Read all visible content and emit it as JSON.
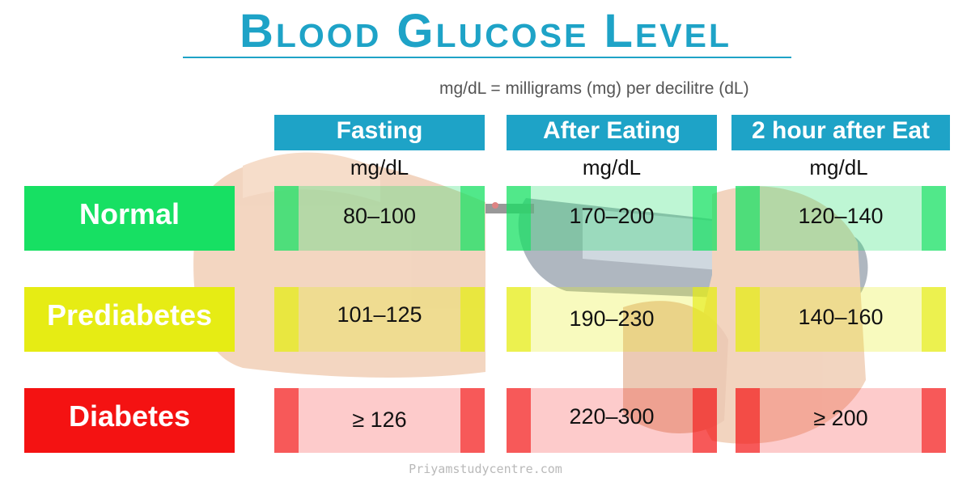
{
  "title": "Blood Glucose Level",
  "unit_note": "mg/dL = milligrams (mg) per decilitre (dL)",
  "columns": [
    {
      "label": "Fasting",
      "unit": "mg/dL"
    },
    {
      "label": "After Eating",
      "unit": "mg/dL"
    },
    {
      "label": "2 hour after Eat",
      "unit": "mg/dL"
    }
  ],
  "rows": [
    {
      "label": "Normal",
      "color": "#17e063",
      "values": [
        "80–100",
        "170–200",
        "120–140"
      ]
    },
    {
      "label": "Prediabetes",
      "color": "#e6ec14",
      "values": [
        "101–125",
        "190–230",
        "140–160"
      ]
    },
    {
      "label": "Diabetes",
      "color": "#f41212",
      "values": [
        "≥ 126",
        "220–300",
        "≥ 200"
      ]
    }
  ],
  "colors": {
    "accent": "#1ea3c7",
    "normal": "#17e063",
    "prediabetes": "#e6ec14",
    "diabetes": "#f41212"
  },
  "footer": "Priyamstudycentre.com"
}
